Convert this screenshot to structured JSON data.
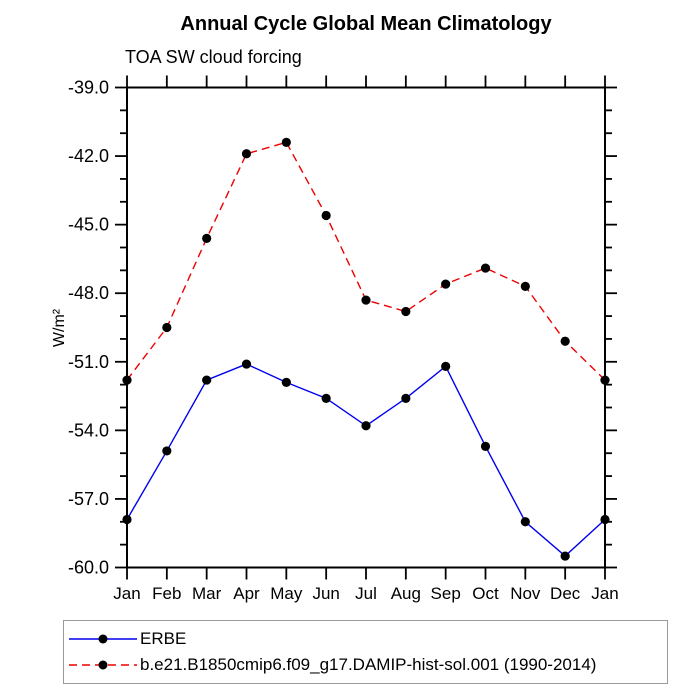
{
  "title": "Annual Cycle Global Mean Climatology",
  "subtitle": "TOA SW cloud forcing",
  "ylabel": "W/m²",
  "chart_data": {
    "type": "line",
    "categories": [
      "Jan",
      "Feb",
      "Mar",
      "Apr",
      "May",
      "Jun",
      "Jul",
      "Aug",
      "Sep",
      "Oct",
      "Nov",
      "Dec",
      "Jan"
    ],
    "series": [
      {
        "name": "ERBE",
        "color": "#0000ee",
        "style": "solid",
        "marker": "circle",
        "marker_color": "#000000",
        "values": [
          -57.9,
          -54.9,
          -51.8,
          -51.1,
          -51.9,
          -52.6,
          -53.8,
          -52.6,
          -51.2,
          -54.7,
          -58.0,
          -59.5,
          -57.9
        ]
      },
      {
        "name": "b.e21.B1850cmip6.f09_g17.DAMIP-hist-sol.001 (1990-2014)",
        "color": "#ee0000",
        "style": "dashed",
        "marker": "circle",
        "marker_color": "#000000",
        "values": [
          -51.8,
          -49.5,
          -45.6,
          -41.9,
          -41.4,
          -44.6,
          -48.3,
          -48.8,
          -47.6,
          -46.9,
          -47.7,
          -50.1,
          -51.8
        ]
      }
    ],
    "ylim": [
      -60.0,
      -39.0
    ],
    "ytick_major_interval": 3.0,
    "ytick_minor_interval": 1.0,
    "ytick_labels": [
      "-39.0",
      "-42.0",
      "-45.0",
      "-48.0",
      "-51.0",
      "-54.0",
      "-57.0",
      "-60.0"
    ],
    "grid": false,
    "legend_position": "bottom",
    "axis_color": "#000000",
    "background_color": "#ffffff"
  }
}
